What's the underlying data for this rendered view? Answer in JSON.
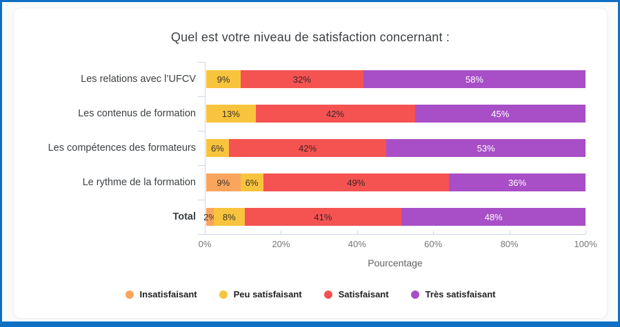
{
  "frame": {
    "border_color": "#0F6FC2",
    "background": "#FAFBFC"
  },
  "chart_data": {
    "type": "bar",
    "orientation": "horizontal",
    "stacked": true,
    "title": "Quel est votre niveau de satisfaction concernant :",
    "xlabel": "Pourcentage",
    "xlim": [
      0,
      100
    ],
    "x_ticks": [
      "0%",
      "20%",
      "40%",
      "60%",
      "80%",
      "100%"
    ],
    "grid": false,
    "legend_position": "bottom",
    "categories": [
      "Les relations avec l’UFCV",
      "Les contenus de formation",
      "Les compétences des formateurs",
      "Le rythme de la formation",
      "Total"
    ],
    "bold_category": "Total",
    "series": [
      {
        "name": "Insatisfaisant",
        "color": "#F9A55E",
        "label_color": "#3D3328",
        "values": [
          0,
          0,
          0,
          9,
          2
        ]
      },
      {
        "name": "Peu satisfaisant",
        "color": "#F8C43D",
        "label_color": "#3D3328",
        "values": [
          9,
          13,
          6,
          6,
          8
        ]
      },
      {
        "name": "Satisfaisant",
        "color": "#F45352",
        "label_color": "#3A2424",
        "values": [
          32,
          42,
          42,
          49,
          41
        ]
      },
      {
        "name": "Très satisfaisant",
        "color": "#A84FC7",
        "label_color": "#FFFFFF",
        "values": [
          58,
          45,
          53,
          36,
          48
        ]
      }
    ]
  }
}
